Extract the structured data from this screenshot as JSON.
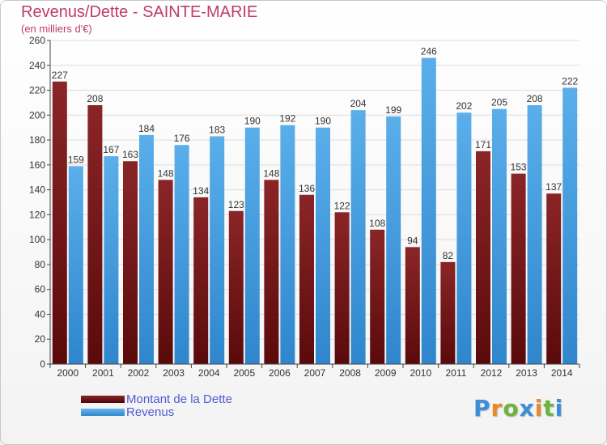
{
  "chart_data": {
    "type": "bar",
    "title": "Revenus/Dette - SAINTE-MARIE",
    "subtitle": "(en milliers d'€)",
    "categories": [
      "2000",
      "2001",
      "2002",
      "2003",
      "2004",
      "2005",
      "2006",
      "2007",
      "2008",
      "2009",
      "2010",
      "2011",
      "2012",
      "2013",
      "2014"
    ],
    "series": [
      {
        "name": "Montant de la Dette",
        "color": "#7a1a1c",
        "values": [
          227,
          208,
          163,
          148,
          134,
          123,
          148,
          136,
          122,
          108,
          94,
          82,
          171,
          153,
          137
        ],
        "labels": [
          "227",
          "208",
          "163",
          "148",
          "134",
          "123",
          "148",
          "136",
          "122",
          "108",
          "94",
          "82",
          "171",
          "153",
          "137"
        ]
      },
      {
        "name": "Revenus",
        "color": "#4fa3e0",
        "values": [
          159,
          167,
          184,
          176,
          183,
          190,
          192,
          190,
          204,
          199,
          246,
          202,
          205,
          208,
          222
        ],
        "labels": [
          "159",
          "167",
          "184",
          "176",
          "183",
          "190",
          "192",
          "190",
          "204",
          "199",
          "246",
          "202",
          "205",
          "208",
          "222"
        ]
      }
    ],
    "yticks": [
      0,
      20,
      40,
      60,
      80,
      100,
      120,
      140,
      160,
      180,
      200,
      220,
      240,
      260
    ],
    "ylim": [
      0,
      260
    ],
    "grid": true,
    "legend_position": "bottom-left"
  },
  "logo": {
    "text": "Proxiti"
  }
}
